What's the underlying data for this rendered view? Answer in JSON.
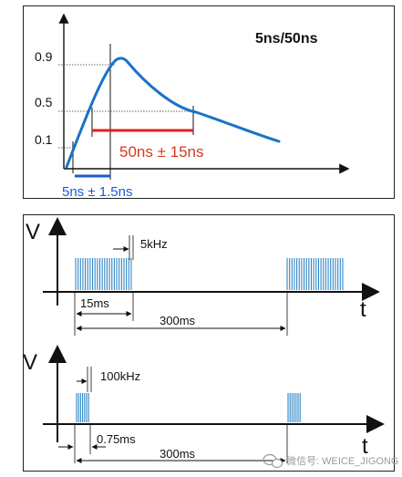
{
  "pulse_panel": {
    "title": "5ns/50ns",
    "y_ticks": [
      "0.9",
      "0.5",
      "0.1"
    ],
    "rise_label": "5ns ± 1.5ns",
    "width_label": "50ns ± 15ns",
    "colors": {
      "curve": "#1a73c8",
      "width_bar": "#e02020",
      "rise_bar": "#1a5bd4",
      "width_text": "#d9381e",
      "rise_text": "#1a5bd4"
    }
  },
  "burst_5k": {
    "y_axis": "V",
    "x_axis": "t",
    "freq_label": "5kHz",
    "burst_label": "15ms",
    "period_label": "300ms"
  },
  "burst_100k": {
    "y_axis": "V",
    "x_axis": "t",
    "freq_label": "100kHz",
    "burst_label": "0.75ms",
    "period_label": "300ms"
  },
  "watermark": {
    "text": "微信号: WEICE_JIGONG"
  }
}
